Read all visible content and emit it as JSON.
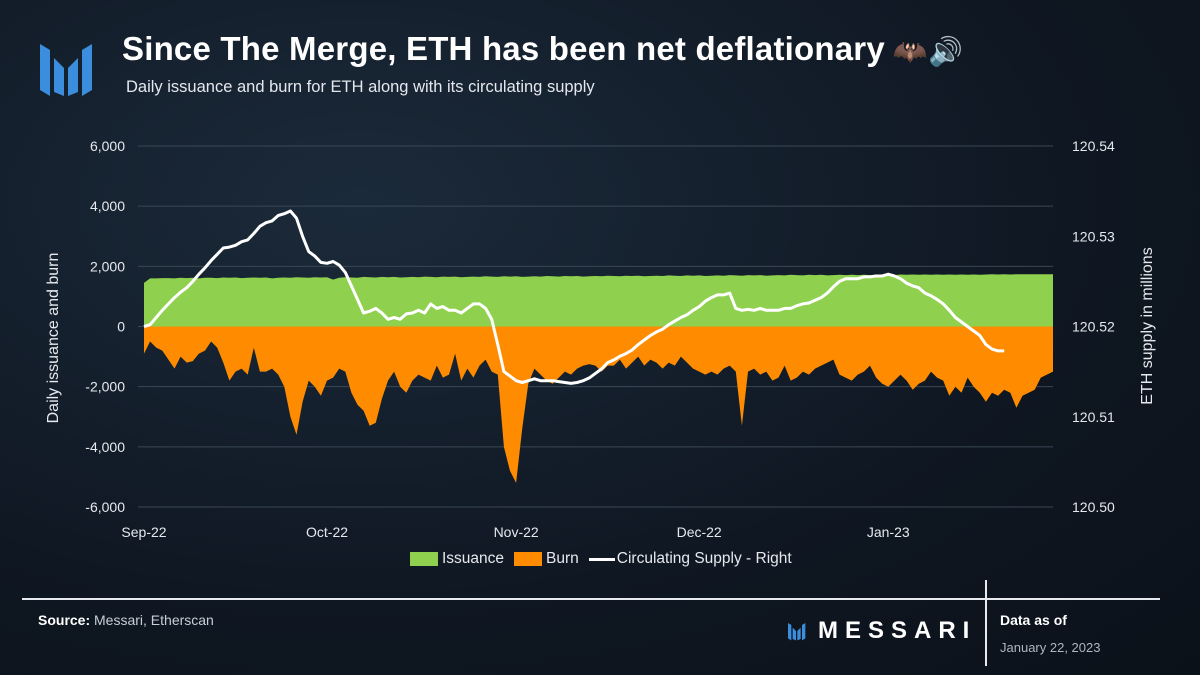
{
  "header": {
    "title": "Since The Merge, ETH has been net deflationary",
    "title_emoji": "🦇🔊",
    "subtitle": "Daily issuance and burn for ETH along with its circulating supply"
  },
  "footer": {
    "source_label": "Source:",
    "source_text": "Messari, Etherscan",
    "brand": "MESSARI",
    "data_as_of_label": "Data as of",
    "data_as_of_date": "January 22, 2023"
  },
  "legend": {
    "issuance": "Issuance",
    "burn": "Burn",
    "supply": "Circulating Supply - Right"
  },
  "colors": {
    "issuance": "#8fd14f",
    "burn": "#ff8c00",
    "supply": "#ffffff",
    "grid": "#3a4755",
    "brand_blue": "#3b8ede"
  },
  "chart_data": {
    "type": "area",
    "title": "Since The Merge, ETH has been net deflationary",
    "subtitle": "Daily issuance and burn for ETH along with its circulating supply",
    "x_start": "2022-09-15",
    "x_tick_labels": [
      "Sep-22",
      "Oct-22",
      "Nov-22",
      "Dec-22",
      "Jan-23"
    ],
    "ylabel_left": "Daily issuance and burn",
    "ylabel_right": "ETH supply in millions",
    "ylim_left": [
      -6000,
      6000
    ],
    "ylim_right": [
      120.5,
      120.54
    ],
    "y_ticks_left": [
      "6,000",
      "4,000",
      "2,000",
      "0",
      "-2,000",
      "-4,000",
      "-6,000"
    ],
    "y_ticks_right": [
      "120.54",
      "120.53",
      "120.52",
      "120.51",
      "120.50"
    ],
    "grid": true,
    "legend_position": "bottom",
    "series": [
      {
        "name": "Issuance",
        "axis": "left",
        "values": [
          1450,
          1600,
          1600,
          1610,
          1610,
          1600,
          1620,
          1610,
          1620,
          1600,
          1620,
          1620,
          1610,
          1630,
          1620,
          1630,
          1610,
          1620,
          1630,
          1620,
          1630,
          1600,
          1620,
          1630,
          1620,
          1640,
          1630,
          1620,
          1640,
          1630,
          1640,
          1560,
          1620,
          1640,
          1630,
          1620,
          1650,
          1640,
          1630,
          1650,
          1640,
          1650,
          1630,
          1640,
          1650,
          1640,
          1660,
          1650,
          1640,
          1660,
          1650,
          1660,
          1640,
          1650,
          1660,
          1650,
          1670,
          1660,
          1650,
          1670,
          1660,
          1670,
          1650,
          1660,
          1670,
          1660,
          1680,
          1670,
          1660,
          1680,
          1670,
          1680,
          1660,
          1670,
          1680,
          1670,
          1690,
          1680,
          1670,
          1690,
          1680,
          1690,
          1670,
          1680,
          1690,
          1680,
          1700,
          1690,
          1680,
          1700,
          1690,
          1700,
          1680,
          1690,
          1700,
          1690,
          1710,
          1700,
          1690,
          1710,
          1700,
          1710,
          1690,
          1700,
          1710,
          1700,
          1720,
          1710,
          1700,
          1720,
          1710,
          1720,
          1700,
          1710,
          1720,
          1710,
          1720,
          1710,
          1720,
          1710,
          1720,
          1710,
          1720,
          1710,
          1730,
          1720,
          1730,
          1720,
          1730,
          1720,
          1730,
          1720,
          1730,
          1720,
          1730,
          1720,
          1730,
          1720,
          1730,
          1740,
          1730,
          1740,
          1730,
          1740,
          1740,
          1740,
          1740,
          1740,
          1740,
          1740
        ]
      },
      {
        "name": "Burn",
        "axis": "left",
        "values": [
          -900,
          -500,
          -700,
          -800,
          -1100,
          -1400,
          -1000,
          -1200,
          -1150,
          -900,
          -800,
          -500,
          -700,
          -1200,
          -1800,
          -1500,
          -1400,
          -1600,
          -700,
          -1500,
          -1500,
          -1400,
          -1600,
          -2000,
          -3000,
          -3600,
          -2500,
          -1800,
          -2000,
          -2300,
          -1800,
          -1700,
          -1400,
          -1500,
          -2200,
          -2600,
          -2800,
          -3300,
          -3200,
          -2400,
          -1800,
          -1500,
          -2000,
          -2200,
          -1800,
          -1600,
          -1700,
          -1800,
          -1300,
          -1700,
          -1600,
          -900,
          -1800,
          -1400,
          -1700,
          -1300,
          -1100,
          -1500,
          -1600,
          -4000,
          -4800,
          -5200,
          -3400,
          -1900,
          -1400,
          -1600,
          -1800,
          -1900,
          -1700,
          -1500,
          -1600,
          -1400,
          -1300,
          -1250,
          -1300,
          -1500,
          -1300,
          -1300,
          -1100,
          -1400,
          -1200,
          -1000,
          -1300,
          -1100,
          -1200,
          -1400,
          -1200,
          -1300,
          -1000,
          -1200,
          -1400,
          -1500,
          -1600,
          -1500,
          -1600,
          -1400,
          -1300,
          -1500,
          -3300,
          -1500,
          -1400,
          -1600,
          -1500,
          -1800,
          -1700,
          -1300,
          -1800,
          -1700,
          -1500,
          -1600,
          -1400,
          -1300,
          -1200,
          -1100,
          -1600,
          -1700,
          -1800,
          -1600,
          -1500,
          -1300,
          -1700,
          -1900,
          -2000,
          -1800,
          -1600,
          -1800,
          -2100,
          -1900,
          -1800,
          -1500,
          -1700,
          -1800,
          -2300,
          -2000,
          -2200,
          -1700,
          -2000,
          -2200,
          -2500,
          -2200,
          -2300,
          -2100,
          -2200,
          -2700,
          -2300,
          -2200,
          -2100,
          -1700,
          -1600,
          -1500
        ]
      },
      {
        "name": "Circulating Supply - Right",
        "axis": "right",
        "values": [
          120.52,
          120.5202,
          120.521,
          120.5218,
          120.5225,
          120.5232,
          120.5238,
          120.5243,
          120.525,
          120.5258,
          120.5265,
          120.5273,
          120.528,
          120.5287,
          120.5288,
          120.529,
          120.5294,
          120.5296,
          120.5303,
          120.5311,
          120.5315,
          120.5317,
          120.5323,
          120.5325,
          120.5328,
          120.532,
          120.53,
          120.5283,
          120.5278,
          120.5271,
          120.527,
          120.5272,
          120.5268,
          120.526,
          120.5245,
          120.523,
          120.5215,
          120.5217,
          120.522,
          120.5215,
          120.5208,
          120.521,
          120.5208,
          120.5214,
          120.5215,
          120.5218,
          120.5215,
          120.5225,
          120.522,
          120.5222,
          120.5218,
          120.5218,
          120.5215,
          120.522,
          120.5225,
          120.5225,
          120.522,
          120.5208,
          120.518,
          120.515,
          120.5145,
          120.514,
          120.5138,
          120.514,
          120.5142,
          120.514,
          120.514,
          120.514,
          120.5139,
          120.5138,
          120.5137,
          120.5138,
          120.514,
          120.5143,
          120.5148,
          120.5153,
          120.516,
          120.5163,
          120.5167,
          120.517,
          120.5174,
          120.518,
          120.5185,
          120.519,
          120.5194,
          120.5197,
          120.5202,
          120.5206,
          120.521,
          120.5213,
          120.5218,
          120.5222,
          120.5228,
          120.5232,
          120.5235,
          120.5235,
          120.5237,
          120.522,
          120.5218,
          120.5219,
          120.5218,
          120.522,
          120.5218,
          120.5218,
          120.5218,
          120.522,
          120.522,
          120.5223,
          120.5225,
          120.5226,
          120.5229,
          120.5232,
          120.5237,
          120.5244,
          120.525,
          120.5253,
          120.5253,
          120.5253,
          120.5255,
          120.5255,
          120.5256,
          120.5256,
          120.5258,
          120.5256,
          120.5253,
          120.5248,
          120.5245,
          120.5243,
          120.5237,
          120.5234,
          120.523,
          120.5225,
          120.5218,
          120.521,
          120.5205,
          120.52,
          120.5195,
          120.519,
          120.518,
          120.5175,
          120.5173,
          120.5173
        ]
      }
    ]
  }
}
